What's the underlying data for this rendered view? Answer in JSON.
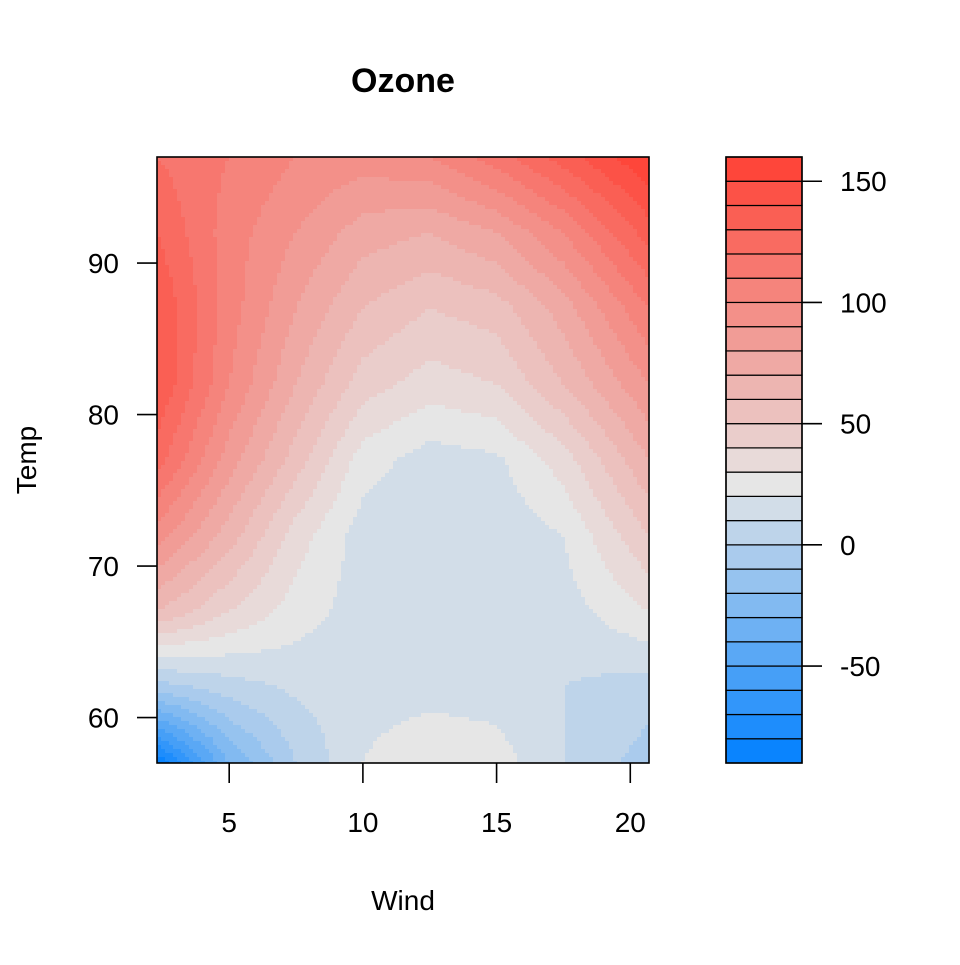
{
  "chart_data": {
    "type": "heatmap",
    "title": "Ozone",
    "xlabel": "Wind",
    "ylabel": "Temp",
    "xlim": [
      2.3,
      20.7
    ],
    "ylim": [
      57,
      97
    ],
    "x_ticks": [
      5,
      10,
      15,
      20
    ],
    "y_ticks": [
      60,
      70,
      80,
      90
    ],
    "colorbar": {
      "range": [
        -90,
        160
      ],
      "step": 10,
      "ticks": [
        -50,
        0,
        50,
        100,
        150
      ],
      "low_color": "#0080FF",
      "mid_color": "#E6E6E6",
      "high_color": "#FF4033"
    },
    "surface": {
      "wind": [
        2.3,
        5,
        7.5,
        10,
        12.5,
        15,
        17.5,
        20.7
      ],
      "temp": [
        97,
        92,
        87,
        82,
        77,
        72,
        67,
        62,
        57
      ],
      "ozone": [
        [
          120,
          110,
          100,
          95,
          100,
          115,
          135,
          160
        ],
        [
          130,
          105,
          90,
          75,
          70,
          80,
          100,
          135
        ],
        [
          140,
          105,
          80,
          60,
          50,
          55,
          75,
          110
        ],
        [
          140,
          100,
          70,
          45,
          35,
          40,
          60,
          90
        ],
        [
          125,
          85,
          55,
          25,
          15,
          18,
          35,
          70
        ],
        [
          95,
          65,
          35,
          15,
          10,
          12,
          20,
          50
        ],
        [
          60,
          40,
          25,
          15,
          10,
          10,
          15,
          30
        ],
        [
          -5,
          5,
          12,
          15,
          15,
          15,
          10,
          5
        ],
        [
          -90,
          -30,
          0,
          20,
          30,
          25,
          10,
          -5
        ]
      ]
    }
  }
}
